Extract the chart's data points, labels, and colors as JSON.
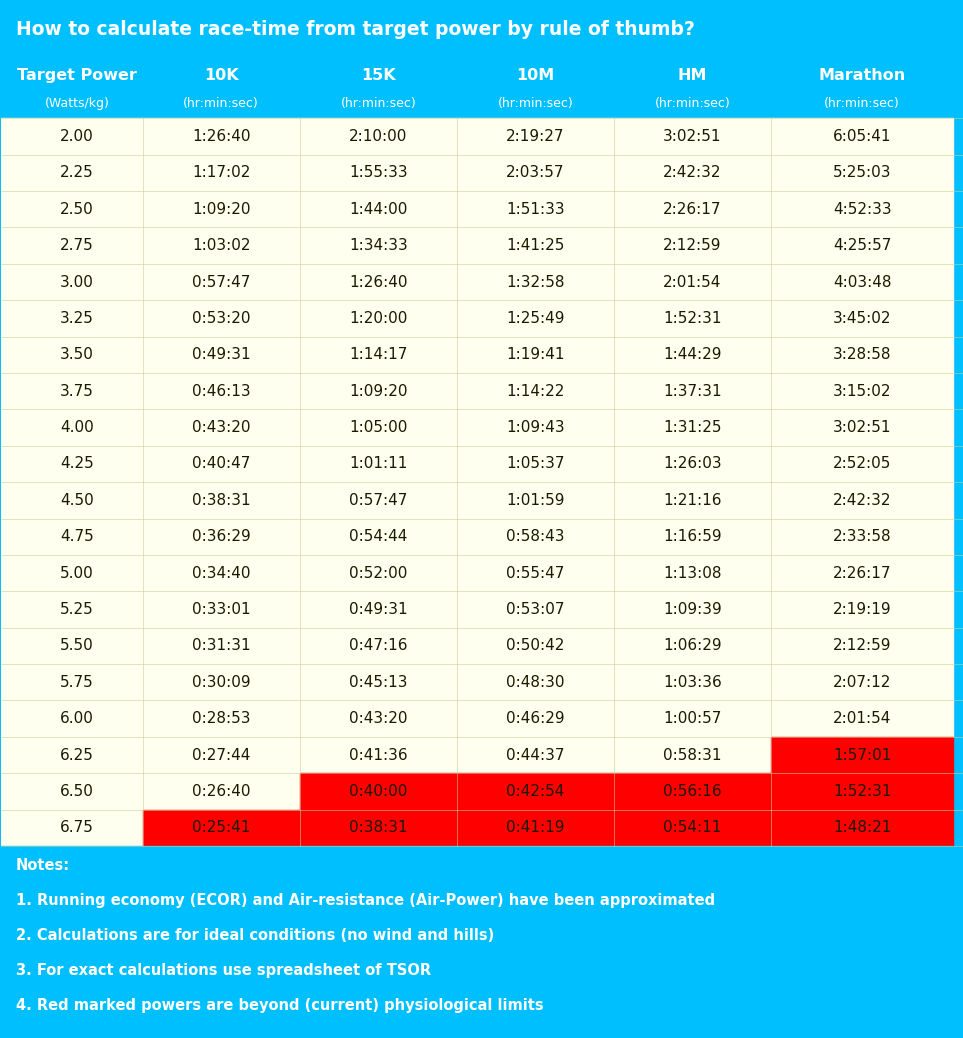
{
  "title": "How to calculate race-time from target power by rule of thumb?",
  "title_color": "#ffffff",
  "title_bg": "#00bfff",
  "header_bg": "#00bfff",
  "header_color": "#ffffff",
  "subheader_color": "#ffffff",
  "row_bg_normal": "#fffff0",
  "row_bg_red": "#ff0000",
  "text_color_normal": "#1a1a00",
  "notes_bg": "#00bfff",
  "notes_color": "#ffffff",
  "notes": [
    "Notes:",
    "1. Running economy (ECOR) and Air-resistance (Air-Power) have been approximated",
    "2. Calculations are for ideal conditions (no wind and hills)",
    "3. For exact calculations use spreadsheet of TSOR",
    "4. Red marked powers are beyond (current) physiological limits"
  ],
  "col_headers": [
    "Target Power",
    "10K",
    "15K",
    "10M",
    "HM",
    "Marathon"
  ],
  "col_subheaders": [
    "(Watts/kg)",
    "(hr:min:sec)",
    "(hr:min:sec)",
    "(hr:min:sec)",
    "(hr:min:sec)",
    "(hr:min:sec)"
  ],
  "rows": [
    {
      "power": "2.00",
      "times": [
        "1:26:40",
        "2:10:00",
        "2:19:27",
        "3:02:51",
        "6:05:41"
      ],
      "red": [
        false,
        false,
        false,
        false,
        false
      ]
    },
    {
      "power": "2.25",
      "times": [
        "1:17:02",
        "1:55:33",
        "2:03:57",
        "2:42:32",
        "5:25:03"
      ],
      "red": [
        false,
        false,
        false,
        false,
        false
      ]
    },
    {
      "power": "2.50",
      "times": [
        "1:09:20",
        "1:44:00",
        "1:51:33",
        "2:26:17",
        "4:52:33"
      ],
      "red": [
        false,
        false,
        false,
        false,
        false
      ]
    },
    {
      "power": "2.75",
      "times": [
        "1:03:02",
        "1:34:33",
        "1:41:25",
        "2:12:59",
        "4:25:57"
      ],
      "red": [
        false,
        false,
        false,
        false,
        false
      ]
    },
    {
      "power": "3.00",
      "times": [
        "0:57:47",
        "1:26:40",
        "1:32:58",
        "2:01:54",
        "4:03:48"
      ],
      "red": [
        false,
        false,
        false,
        false,
        false
      ]
    },
    {
      "power": "3.25",
      "times": [
        "0:53:20",
        "1:20:00",
        "1:25:49",
        "1:52:31",
        "3:45:02"
      ],
      "red": [
        false,
        false,
        false,
        false,
        false
      ]
    },
    {
      "power": "3.50",
      "times": [
        "0:49:31",
        "1:14:17",
        "1:19:41",
        "1:44:29",
        "3:28:58"
      ],
      "red": [
        false,
        false,
        false,
        false,
        false
      ]
    },
    {
      "power": "3.75",
      "times": [
        "0:46:13",
        "1:09:20",
        "1:14:22",
        "1:37:31",
        "3:15:02"
      ],
      "red": [
        false,
        false,
        false,
        false,
        false
      ]
    },
    {
      "power": "4.00",
      "times": [
        "0:43:20",
        "1:05:00",
        "1:09:43",
        "1:31:25",
        "3:02:51"
      ],
      "red": [
        false,
        false,
        false,
        false,
        false
      ]
    },
    {
      "power": "4.25",
      "times": [
        "0:40:47",
        "1:01:11",
        "1:05:37",
        "1:26:03",
        "2:52:05"
      ],
      "red": [
        false,
        false,
        false,
        false,
        false
      ]
    },
    {
      "power": "4.50",
      "times": [
        "0:38:31",
        "0:57:47",
        "1:01:59",
        "1:21:16",
        "2:42:32"
      ],
      "red": [
        false,
        false,
        false,
        false,
        false
      ]
    },
    {
      "power": "4.75",
      "times": [
        "0:36:29",
        "0:54:44",
        "0:58:43",
        "1:16:59",
        "2:33:58"
      ],
      "red": [
        false,
        false,
        false,
        false,
        false
      ]
    },
    {
      "power": "5.00",
      "times": [
        "0:34:40",
        "0:52:00",
        "0:55:47",
        "1:13:08",
        "2:26:17"
      ],
      "red": [
        false,
        false,
        false,
        false,
        false
      ]
    },
    {
      "power": "5.25",
      "times": [
        "0:33:01",
        "0:49:31",
        "0:53:07",
        "1:09:39",
        "2:19:19"
      ],
      "red": [
        false,
        false,
        false,
        false,
        false
      ]
    },
    {
      "power": "5.50",
      "times": [
        "0:31:31",
        "0:47:16",
        "0:50:42",
        "1:06:29",
        "2:12:59"
      ],
      "red": [
        false,
        false,
        false,
        false,
        false
      ]
    },
    {
      "power": "5.75",
      "times": [
        "0:30:09",
        "0:45:13",
        "0:48:30",
        "1:03:36",
        "2:07:12"
      ],
      "red": [
        false,
        false,
        false,
        false,
        false
      ]
    },
    {
      "power": "6.00",
      "times": [
        "0:28:53",
        "0:43:20",
        "0:46:29",
        "1:00:57",
        "2:01:54"
      ],
      "red": [
        false,
        false,
        false,
        false,
        false
      ]
    },
    {
      "power": "6.25",
      "times": [
        "0:27:44",
        "0:41:36",
        "0:44:37",
        "0:58:31",
        "1:57:01"
      ],
      "red": [
        false,
        false,
        false,
        false,
        true
      ]
    },
    {
      "power": "6.50",
      "times": [
        "0:26:40",
        "0:40:00",
        "0:42:54",
        "0:56:16",
        "1:52:31"
      ],
      "red": [
        false,
        true,
        true,
        true,
        true
      ]
    },
    {
      "power": "6.75",
      "times": [
        "0:25:41",
        "0:38:31",
        "0:41:19",
        "0:54:11",
        "1:48:21"
      ],
      "red": [
        true,
        true,
        true,
        true,
        true
      ]
    }
  ],
  "fig_width": 9.63,
  "fig_height": 10.38,
  "dpi": 100
}
